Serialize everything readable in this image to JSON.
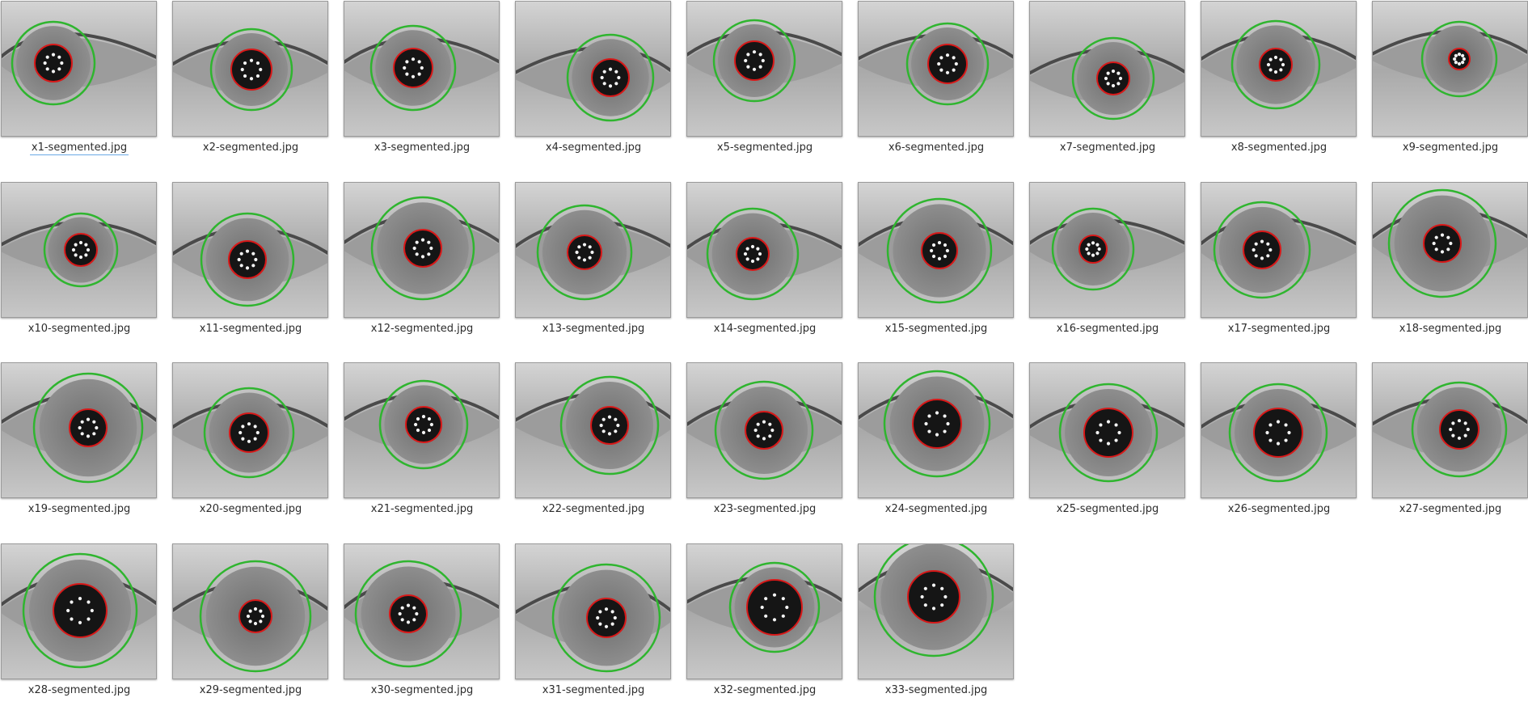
{
  "files": [
    {
      "name": "x1-segmented.jpg"
    },
    {
      "name": "x2-segmented.jpg"
    },
    {
      "name": "x3-segmented.jpg"
    },
    {
      "name": "x4-segmented.jpg"
    },
    {
      "name": "x5-segmented.jpg"
    },
    {
      "name": "x6-segmented.jpg"
    },
    {
      "name": "x7-segmented.jpg"
    },
    {
      "name": "x8-segmented.jpg"
    },
    {
      "name": "x9-segmented.jpg"
    },
    {
      "name": "x10-segmented.jpg"
    },
    {
      "name": "x11-segmented.jpg"
    },
    {
      "name": "x12-segmented.jpg"
    },
    {
      "name": "x13-segmented.jpg"
    },
    {
      "name": "x14-segmented.jpg"
    },
    {
      "name": "x15-segmented.jpg"
    },
    {
      "name": "x16-segmented.jpg"
    },
    {
      "name": "x17-segmented.jpg"
    },
    {
      "name": "x18-segmented.jpg"
    },
    {
      "name": "x19-segmented.jpg"
    },
    {
      "name": "x20-segmented.jpg"
    },
    {
      "name": "x21-segmented.jpg"
    },
    {
      "name": "x22-segmented.jpg"
    },
    {
      "name": "x23-segmented.jpg"
    },
    {
      "name": "x24-segmented.jpg"
    },
    {
      "name": "x25-segmented.jpg"
    },
    {
      "name": "x26-segmented.jpg"
    },
    {
      "name": "x27-segmented.jpg"
    },
    {
      "name": "x28-segmented.jpg"
    },
    {
      "name": "x29-segmented.jpg"
    },
    {
      "name": "x30-segmented.jpg"
    },
    {
      "name": "x31-segmented.jpg"
    },
    {
      "name": "x32-segmented.jpg"
    },
    {
      "name": "x33-segmented.jpg"
    }
  ],
  "focused_file": "x1-segmented.jpg",
  "colors": {
    "iris_boundary": "#2fb52f",
    "pupil_boundary": "#d81818",
    "focus_underline": "#6aa9e6"
  }
}
